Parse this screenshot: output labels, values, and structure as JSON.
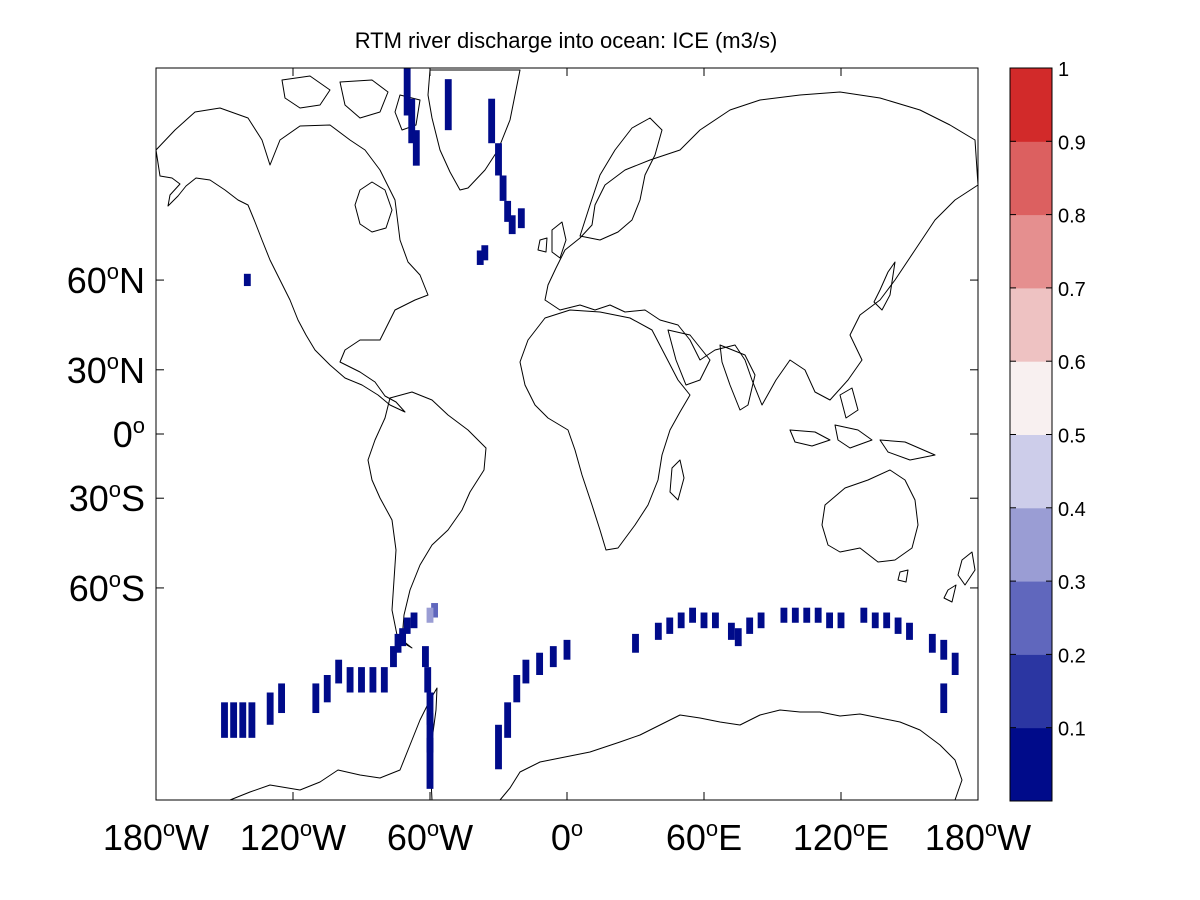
{
  "title": "RTM river discharge into ocean: ICE (m3/s)",
  "colors": {
    "background": "#ffffff",
    "frame": "#000000",
    "coastline": "#000000",
    "ice_cell": "#0c1797"
  },
  "chart_data": {
    "type": "heatmap",
    "projection": "mercator",
    "title": "RTM river discharge into ocean: ICE (m3/s)",
    "xlim": [
      -180,
      180
    ],
    "ylim": [
      -85,
      85
    ],
    "x_ticks": [
      {
        "lon": -180,
        "num": "180",
        "sup": "o",
        "dir": "W"
      },
      {
        "lon": -120,
        "num": "120",
        "sup": "o",
        "dir": "W"
      },
      {
        "lon": -60,
        "num": "60",
        "sup": "o",
        "dir": "W"
      },
      {
        "lon": 0,
        "num": "0",
        "sup": "o",
        "dir": ""
      },
      {
        "lon": 60,
        "num": "60",
        "sup": "o",
        "dir": "E"
      },
      {
        "lon": 120,
        "num": "120",
        "sup": "o",
        "dir": "E"
      },
      {
        "lon": 180,
        "num": "180",
        "sup": "o",
        "dir": "W"
      }
    ],
    "y_ticks": [
      {
        "lat": 60,
        "num": "60",
        "sup": "o",
        "dir": "N"
      },
      {
        "lat": 30,
        "num": "30",
        "sup": "o",
        "dir": "N"
      },
      {
        "lat": 0,
        "num": "0",
        "sup": "o",
        "dir": ""
      },
      {
        "lat": -30,
        "num": "30",
        "sup": "o",
        "dir": "S"
      },
      {
        "lat": -60,
        "num": "60",
        "sup": "o",
        "dir": "S"
      }
    ],
    "colorbar": {
      "range": [
        0,
        1
      ],
      "ticks": [
        "0.1",
        "0.2",
        "0.3",
        "0.4",
        "0.5",
        "0.6",
        "0.7",
        "0.8",
        "0.9",
        "1"
      ],
      "colors": [
        "#000b8a",
        "#2b36a2",
        "#6067bd",
        "#9a9dd4",
        "#cdcdea",
        "#f8f0f0",
        "#eec2c2",
        "#e58f8f",
        "#dc6060",
        "#d22a2a"
      ]
    },
    "discharge_cells": [
      {
        "lon": -70,
        "lat": 84,
        "value": 0.05
      },
      {
        "lon": -68,
        "lat": 82,
        "value": 0.05
      },
      {
        "lon": -66,
        "lat": 80,
        "value": 0.05
      },
      {
        "lon": -52,
        "lat": 83,
        "value": 0.05
      },
      {
        "lon": -33,
        "lat": 82,
        "value": 0.05
      },
      {
        "lon": -30,
        "lat": 79,
        "value": 0.05
      },
      {
        "lon": -28,
        "lat": 76,
        "value": 0.05
      },
      {
        "lon": -26,
        "lat": 73,
        "value": 0.05
      },
      {
        "lon": -24,
        "lat": 71,
        "value": 0.05
      },
      {
        "lon": -36,
        "lat": 66,
        "value": 0.05
      },
      {
        "lon": -38,
        "lat": 65,
        "value": 0.05
      },
      {
        "lon": -20,
        "lat": 72,
        "value": 0.05
      },
      {
        "lon": -140,
        "lat": 60,
        "value": 0.05
      },
      {
        "lon": -150,
        "lat": -80,
        "value": 0.05
      },
      {
        "lon": -146,
        "lat": -80,
        "value": 0.05
      },
      {
        "lon": -142,
        "lat": -80,
        "value": 0.05
      },
      {
        "lon": -138,
        "lat": -80,
        "value": 0.05
      },
      {
        "lon": -130,
        "lat": -79,
        "value": 0.05
      },
      {
        "lon": -125,
        "lat": -78,
        "value": 0.05
      },
      {
        "lon": -110,
        "lat": -78,
        "value": 0.05
      },
      {
        "lon": -105,
        "lat": -77,
        "value": 0.05
      },
      {
        "lon": -100,
        "lat": -75,
        "value": 0.05
      },
      {
        "lon": -95,
        "lat": -76,
        "value": 0.05
      },
      {
        "lon": -90,
        "lat": -76,
        "value": 0.05
      },
      {
        "lon": -85,
        "lat": -76,
        "value": 0.05
      },
      {
        "lon": -80,
        "lat": -76,
        "value": 0.05
      },
      {
        "lon": -76,
        "lat": -73,
        "value": 0.05
      },
      {
        "lon": -74,
        "lat": -71,
        "value": 0.05
      },
      {
        "lon": -72,
        "lat": -70,
        "value": 0.05
      },
      {
        "lon": -70,
        "lat": -68,
        "value": 0.05
      },
      {
        "lon": -67,
        "lat": -67,
        "value": 0.05
      },
      {
        "lon": -62,
        "lat": -73,
        "value": 0.05
      },
      {
        "lon": -61,
        "lat": -76,
        "value": 0.05
      },
      {
        "lon": -60,
        "lat": -79,
        "value": 0.05
      },
      {
        "lon": -60,
        "lat": -81,
        "value": 0.05
      },
      {
        "lon": -60,
        "lat": -83,
        "value": 0.05
      },
      {
        "lon": -58,
        "lat": -65,
        "value": 0.25
      },
      {
        "lon": -60,
        "lat": -66,
        "value": 0.35
      },
      {
        "lon": -30,
        "lat": -82,
        "value": 0.05
      },
      {
        "lon": -26,
        "lat": -80,
        "value": 0.05
      },
      {
        "lon": -22,
        "lat": -77,
        "value": 0.05
      },
      {
        "lon": -18,
        "lat": -75,
        "value": 0.05
      },
      {
        "lon": -12,
        "lat": -74,
        "value": 0.05
      },
      {
        "lon": -6,
        "lat": -73,
        "value": 0.05
      },
      {
        "lon": 0,
        "lat": -72,
        "value": 0.05
      },
      {
        "lon": 30,
        "lat": -71,
        "value": 0.05
      },
      {
        "lon": 40,
        "lat": -69,
        "value": 0.05
      },
      {
        "lon": 45,
        "lat": -68,
        "value": 0.05
      },
      {
        "lon": 50,
        "lat": -67,
        "value": 0.05
      },
      {
        "lon": 55,
        "lat": -66,
        "value": 0.05
      },
      {
        "lon": 60,
        "lat": -67,
        "value": 0.05
      },
      {
        "lon": 65,
        "lat": -67,
        "value": 0.05
      },
      {
        "lon": 72,
        "lat": -69,
        "value": 0.05
      },
      {
        "lon": 75,
        "lat": -70,
        "value": 0.05
      },
      {
        "lon": 80,
        "lat": -68,
        "value": 0.05
      },
      {
        "lon": 85,
        "lat": -67,
        "value": 0.05
      },
      {
        "lon": 95,
        "lat": -66,
        "value": 0.05
      },
      {
        "lon": 100,
        "lat": -66,
        "value": 0.05
      },
      {
        "lon": 105,
        "lat": -66,
        "value": 0.05
      },
      {
        "lon": 110,
        "lat": -66,
        "value": 0.05
      },
      {
        "lon": 115,
        "lat": -67,
        "value": 0.05
      },
      {
        "lon": 120,
        "lat": -67,
        "value": 0.05
      },
      {
        "lon": 130,
        "lat": -66,
        "value": 0.05
      },
      {
        "lon": 135,
        "lat": -67,
        "value": 0.05
      },
      {
        "lon": 140,
        "lat": -67,
        "value": 0.05
      },
      {
        "lon": 145,
        "lat": -68,
        "value": 0.05
      },
      {
        "lon": 150,
        "lat": -69,
        "value": 0.05
      },
      {
        "lon": 160,
        "lat": -71,
        "value": 0.05
      },
      {
        "lon": 165,
        "lat": -72,
        "value": 0.05
      },
      {
        "lon": 170,
        "lat": -74,
        "value": 0.05
      },
      {
        "lon": 165,
        "lat": -78,
        "value": 0.05
      }
    ]
  }
}
